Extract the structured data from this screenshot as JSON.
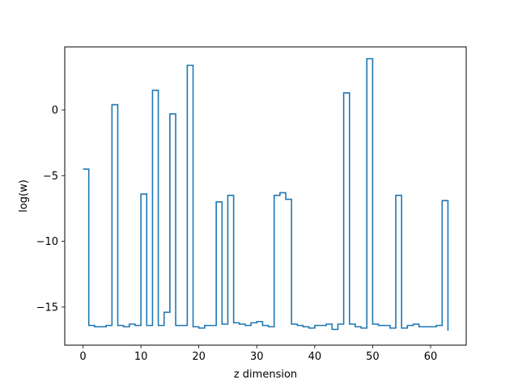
{
  "chart_data": {
    "type": "line",
    "step": "post",
    "title": "",
    "xlabel": "z dimension",
    "ylabel": "log(w)",
    "xlim": [
      -3.15,
      66.15
    ],
    "ylim": [
      -17.9,
      4.8
    ],
    "xticks": [
      0,
      10,
      20,
      30,
      40,
      50,
      60
    ],
    "yticks": [
      -15,
      -10,
      -5,
      0
    ],
    "grid": false,
    "legend": "none",
    "line_color": "#1f77b4",
    "series": [
      {
        "x": [
          0,
          1,
          2,
          3,
          4,
          5,
          6,
          7,
          8,
          9,
          10,
          11,
          12,
          13,
          14,
          15,
          16,
          17,
          18,
          19,
          20,
          21,
          22,
          23,
          24,
          25,
          26,
          27,
          28,
          29,
          30,
          31,
          32,
          33,
          34,
          35,
          36,
          37,
          38,
          39,
          40,
          41,
          42,
          43,
          44,
          45,
          46,
          47,
          48,
          49,
          50,
          51,
          52,
          53,
          54,
          55,
          56,
          57,
          58,
          59,
          60,
          61,
          62,
          63
        ],
        "values": [
          -4.5,
          -16.4,
          -16.5,
          -16.5,
          -16.4,
          0.4,
          -16.4,
          -16.5,
          -16.3,
          -16.4,
          -6.4,
          -16.4,
          1.5,
          -16.4,
          -15.4,
          -0.3,
          -16.4,
          -16.4,
          3.4,
          -16.5,
          -16.6,
          -16.4,
          -16.4,
          -7.0,
          -16.3,
          -6.5,
          -16.2,
          -16.3,
          -16.4,
          -16.2,
          -16.1,
          -16.4,
          -16.5,
          -6.5,
          -6.3,
          -6.8,
          -16.3,
          -16.4,
          -16.5,
          -16.6,
          -16.4,
          -16.4,
          -16.3,
          -16.7,
          -16.3,
          1.3,
          -16.3,
          -16.5,
          -16.6,
          3.9,
          -16.3,
          -16.4,
          -16.4,
          -16.6,
          -6.5,
          -16.6,
          -16.4,
          -16.3,
          -16.5,
          -16.5,
          -16.5,
          -16.4,
          -6.9,
          -16.8
        ]
      }
    ]
  }
}
